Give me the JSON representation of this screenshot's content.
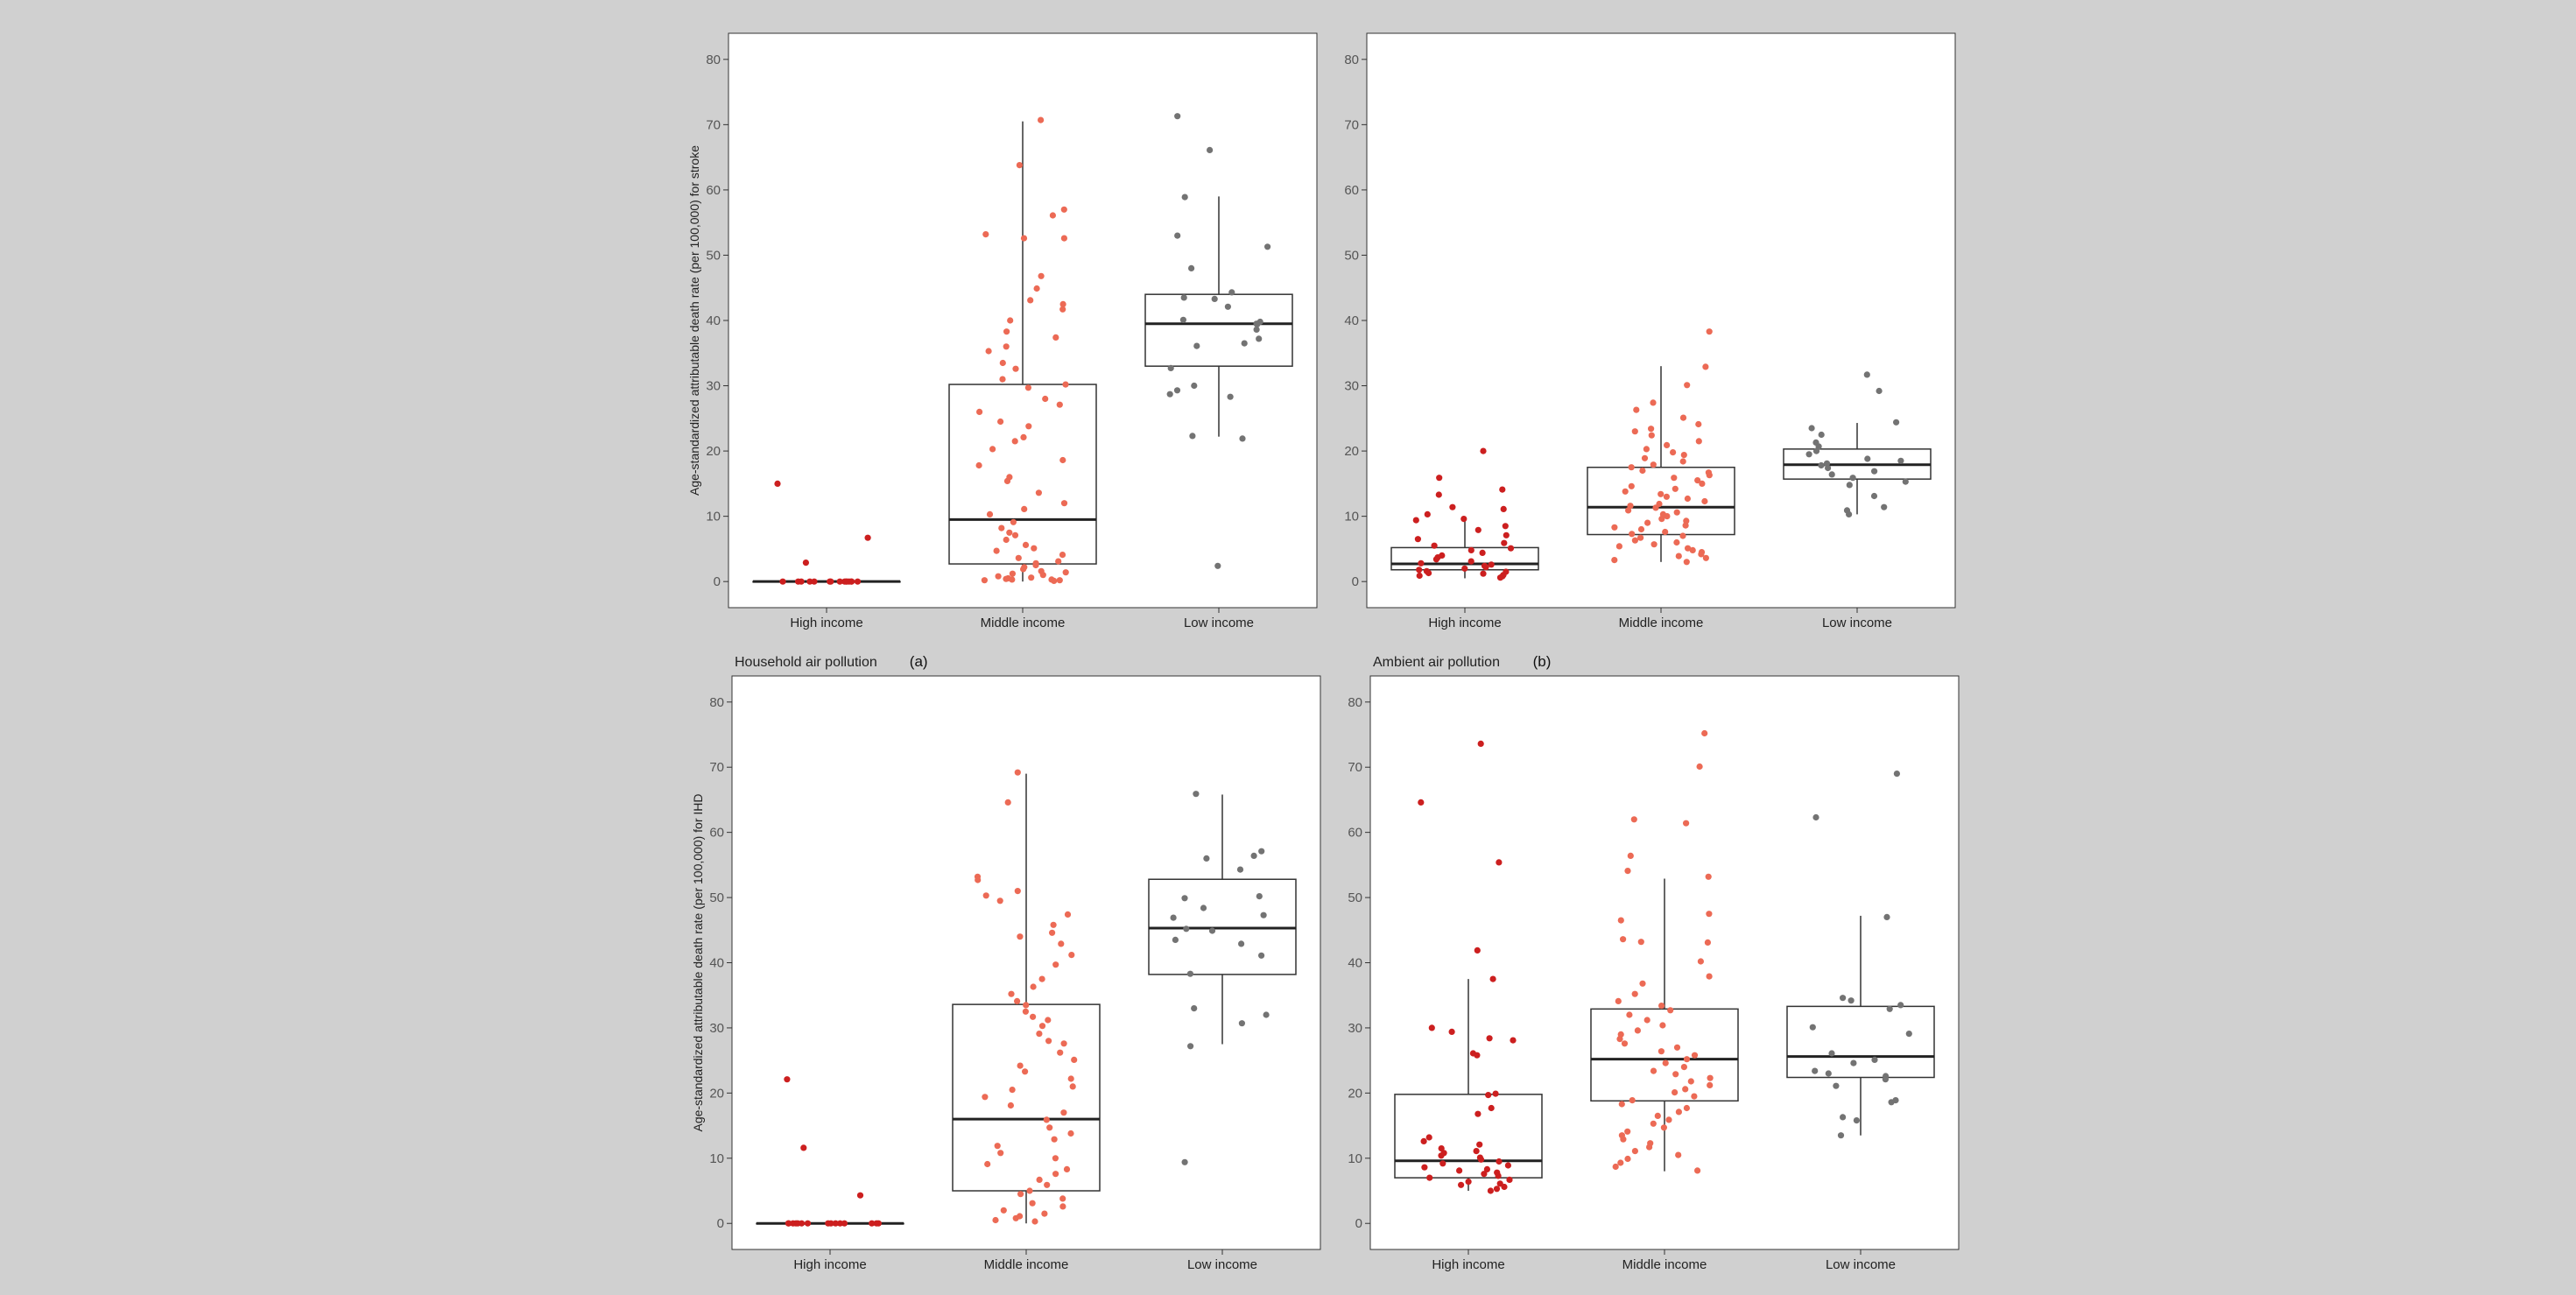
{
  "chart_data": [
    {
      "type": "box-jitter",
      "title": "",
      "panel_label": "",
      "xlabel": "",
      "ylabel": "Age-standardized attributable death rate (per 100,000) for stroke",
      "categories": [
        "High income",
        "Middle income",
        "Low income"
      ],
      "ylim": [
        -4,
        84
      ],
      "yticks": [
        0,
        10,
        20,
        30,
        40,
        50,
        60,
        70,
        80
      ],
      "boxes": [
        {
          "category": "High income",
          "min": 0,
          "q1": 0,
          "median": 0,
          "q3": 0,
          "max": 0
        },
        {
          "category": "Middle income",
          "min": 0,
          "q1": 2.7,
          "median": 9.5,
          "q3": 30.2,
          "max": 70.5
        },
        {
          "category": "Low income",
          "min": 22.2,
          "q1": 33,
          "median": 39.5,
          "q3": 44,
          "max": 59
        }
      ],
      "points": {
        "High income": [
          15,
          6.7,
          2.9,
          0,
          0,
          0,
          0,
          0,
          0,
          0,
          0,
          0,
          0,
          0,
          0,
          0,
          0,
          0
        ],
        "Middle income": [
          70.7,
          63.8,
          57,
          56.1,
          53.2,
          52.6,
          52.6,
          46.8,
          44.9,
          43.1,
          42.5,
          41.7,
          40,
          38.3,
          37.4,
          36,
          35.3,
          33.5,
          32.6,
          31,
          30.2,
          29.7,
          28,
          27.1,
          26,
          24.5,
          23.8,
          22.1,
          21.5,
          20.3,
          18.6,
          17.8,
          16,
          15.4,
          13.6,
          12,
          11.1,
          10.3,
          9.1,
          8.2,
          7.5,
          7.1,
          6.4,
          5.6,
          5.1,
          4.7,
          4.1,
          3.6,
          3.1,
          2.8,
          2.5,
          2.2,
          1.9,
          1.6,
          1.4,
          1.2,
          1,
          0.8,
          0.6,
          0.5,
          0.4,
          0.3,
          0.3,
          0.2,
          0.2,
          0.1
        ],
        "Low income": [
          71.3,
          66.1,
          58.9,
          53,
          51.3,
          48,
          44.3,
          43.5,
          43.3,
          42.1,
          40.1,
          39.8,
          39.5,
          39.4,
          38.6,
          37.2,
          36.5,
          36.1,
          32.7,
          30,
          29.3,
          28.7,
          28.3,
          22.3,
          21.9,
          2.4
        ]
      }
    },
    {
      "type": "box-jitter",
      "title": "",
      "panel_label": "",
      "xlabel": "",
      "ylabel": "",
      "categories": [
        "High income",
        "Middle income",
        "Low income"
      ],
      "ylim": [
        -4,
        84
      ],
      "yticks": [
        0,
        10,
        20,
        30,
        40,
        50,
        60,
        70,
        80
      ],
      "boxes": [
        {
          "category": "High income",
          "min": 0.5,
          "q1": 1.8,
          "median": 2.7,
          "q3": 5.2,
          "max": 9.8
        },
        {
          "category": "Middle income",
          "min": 3,
          "q1": 7.2,
          "median": 11.4,
          "q3": 17.5,
          "max": 33
        },
        {
          "category": "Low income",
          "min": 10.3,
          "q1": 15.7,
          "median": 17.9,
          "q3": 20.3,
          "max": 24.3
        }
      ],
      "points": {
        "High income": [
          20,
          15.9,
          14.1,
          13.3,
          11.4,
          11.1,
          10.3,
          9.6,
          9.4,
          8.5,
          7.9,
          7.1,
          6.5,
          5.9,
          5.5,
          5.1,
          4.8,
          4.4,
          4,
          3.7,
          3.4,
          3.1,
          2.8,
          2.6,
          2.4,
          2.2,
          2,
          1.8,
          1.6,
          1.5,
          1.3,
          1.2,
          1,
          0.9,
          0.8,
          0.6
        ],
        "Middle income": [
          38.3,
          32.9,
          30.1,
          27.4,
          26.3,
          25.1,
          24.1,
          23.4,
          23,
          22.4,
          21.5,
          20.9,
          20.3,
          19.8,
          19.4,
          18.9,
          18.4,
          17.9,
          17.5,
          17,
          16.7,
          16.3,
          15.9,
          15.5,
          15,
          14.6,
          14.2,
          13.8,
          13.4,
          13,
          12.7,
          12.3,
          11.9,
          11.6,
          11.3,
          10.9,
          10.6,
          10.3,
          10,
          9.6,
          9.3,
          9,
          8.6,
          8.3,
          8,
          7.6,
          7.3,
          7,
          6.7,
          6.3,
          6,
          5.7,
          5.4,
          5.1,
          4.8,
          4.5,
          4.2,
          3.9,
          3.6,
          3.3,
          3
        ],
        "Low income": [
          31.7,
          29.2,
          24.4,
          23.5,
          22.5,
          21.3,
          20.7,
          20,
          19.5,
          18.8,
          18.5,
          18.1,
          17.8,
          17.4,
          16.9,
          16.4,
          15.9,
          15.3,
          14.8,
          13.1,
          11.4,
          10.9,
          10.3
        ]
      }
    },
    {
      "type": "box-jitter",
      "title": "Household air pollution",
      "panel_label": "(a)",
      "xlabel": "",
      "ylabel": "Age-standardized attributable death rate (per 100,000) for IHD",
      "categories": [
        "High income",
        "Middle income",
        "Low income"
      ],
      "ylim": [
        -4,
        84
      ],
      "yticks": [
        0,
        10,
        20,
        30,
        40,
        50,
        60,
        70,
        80
      ],
      "boxes": [
        {
          "category": "High income",
          "min": 0,
          "q1": 0,
          "median": 0,
          "q3": 0,
          "max": 0
        },
        {
          "category": "Middle income",
          "min": 0,
          "q1": 5,
          "median": 16,
          "q3": 33.6,
          "max": 69
        },
        {
          "category": "Low income",
          "min": 27.5,
          "q1": 38.2,
          "median": 45.3,
          "q3": 52.8,
          "max": 65.8
        }
      ],
      "points": {
        "High income": [
          22.1,
          11.6,
          4.3,
          0,
          0,
          0,
          0,
          0,
          0,
          0,
          0,
          0,
          0,
          0,
          0,
          0,
          0,
          0
        ],
        "Middle income": [
          69.2,
          64.6,
          53.2,
          52.7,
          51,
          50.3,
          49.5,
          47.4,
          45.8,
          44.6,
          44,
          42.9,
          41.2,
          39.7,
          37.5,
          36.3,
          35.2,
          34.1,
          33.5,
          32.5,
          31.7,
          31.2,
          30.3,
          29.1,
          28,
          27.6,
          26.2,
          25.1,
          24.2,
          23.3,
          22.2,
          21,
          20.5,
          19.4,
          18.1,
          17,
          15.9,
          14.7,
          13.8,
          12.9,
          11.9,
          10.8,
          10,
          9.1,
          8.3,
          7.6,
          6.7,
          5.9,
          5,
          4.5,
          3.8,
          3.1,
          2.6,
          2,
          1.5,
          1.1,
          0.8,
          0.5,
          0.3
        ],
        "Low income": [
          65.9,
          57.1,
          56.4,
          56,
          54.3,
          50.2,
          49.9,
          48.4,
          47.3,
          46.9,
          45.2,
          44.9,
          43.5,
          42.9,
          41.1,
          38.3,
          33,
          32,
          30.7,
          27.2,
          9.4
        ]
      }
    },
    {
      "type": "box-jitter",
      "title": "Ambient air pollution",
      "panel_label": "(b)",
      "xlabel": "",
      "ylabel": "",
      "categories": [
        "High income",
        "Middle income",
        "Low income"
      ],
      "ylim": [
        -4,
        84
      ],
      "yticks": [
        0,
        10,
        20,
        30,
        40,
        50,
        60,
        70,
        80
      ],
      "boxes": [
        {
          "category": "High income",
          "min": 5,
          "q1": 7,
          "median": 9.6,
          "q3": 19.8,
          "max": 37.5
        },
        {
          "category": "Middle income",
          "min": 8,
          "q1": 18.8,
          "median": 25.2,
          "q3": 32.9,
          "max": 52.9
        },
        {
          "category": "Low income",
          "min": 13.5,
          "q1": 22.4,
          "median": 25.6,
          "q3": 33.3,
          "max": 47.2
        }
      ],
      "points": {
        "High income": [
          73.6,
          64.6,
          55.4,
          41.9,
          37.5,
          30,
          29.4,
          28.4,
          28.1,
          26.1,
          25.8,
          19.9,
          19.7,
          17.7,
          16.8,
          13.2,
          12.6,
          12.1,
          11.5,
          11.1,
          10.8,
          10.4,
          10.1,
          9.8,
          9.5,
          9.2,
          8.9,
          8.6,
          8.3,
          8.1,
          7.8,
          7.6,
          7.3,
          7,
          6.7,
          6.4,
          6.1,
          5.9,
          5.6,
          5.3,
          5
        ],
        "Middle income": [
          75.2,
          70.1,
          62,
          61.4,
          56.4,
          54.1,
          53.2,
          47.5,
          46.5,
          43.6,
          43.2,
          43.1,
          40.2,
          37.9,
          36.8,
          35.2,
          34.1,
          33.4,
          32.7,
          32,
          31.2,
          30.4,
          29.6,
          29,
          28.3,
          27.6,
          27,
          26.4,
          25.8,
          25.2,
          24.6,
          24,
          23.4,
          22.9,
          22.3,
          21.8,
          21.2,
          20.6,
          20.1,
          19.5,
          18.9,
          18.3,
          17.7,
          17.1,
          16.5,
          15.9,
          15.3,
          14.7,
          14.1,
          13.5,
          12.9,
          12.3,
          11.7,
          11.1,
          10.5,
          9.9,
          9.3,
          8.7,
          8.1
        ],
        "Low income": [
          69,
          62.3,
          47,
          34.6,
          34.2,
          33.5,
          32.9,
          30.1,
          29.1,
          26.1,
          25.1,
          24.6,
          23.4,
          23,
          22.6,
          22.1,
          21.1,
          18.9,
          18.6,
          16.3,
          15.8,
          13.5
        ]
      }
    }
  ],
  "colors": {
    "High income": "#cc1f1f",
    "Middle income": "#ec6a55",
    "Low income": "#737373",
    "background": "#d0d0d0",
    "panel": "#ffffff",
    "axis": "#333333"
  }
}
